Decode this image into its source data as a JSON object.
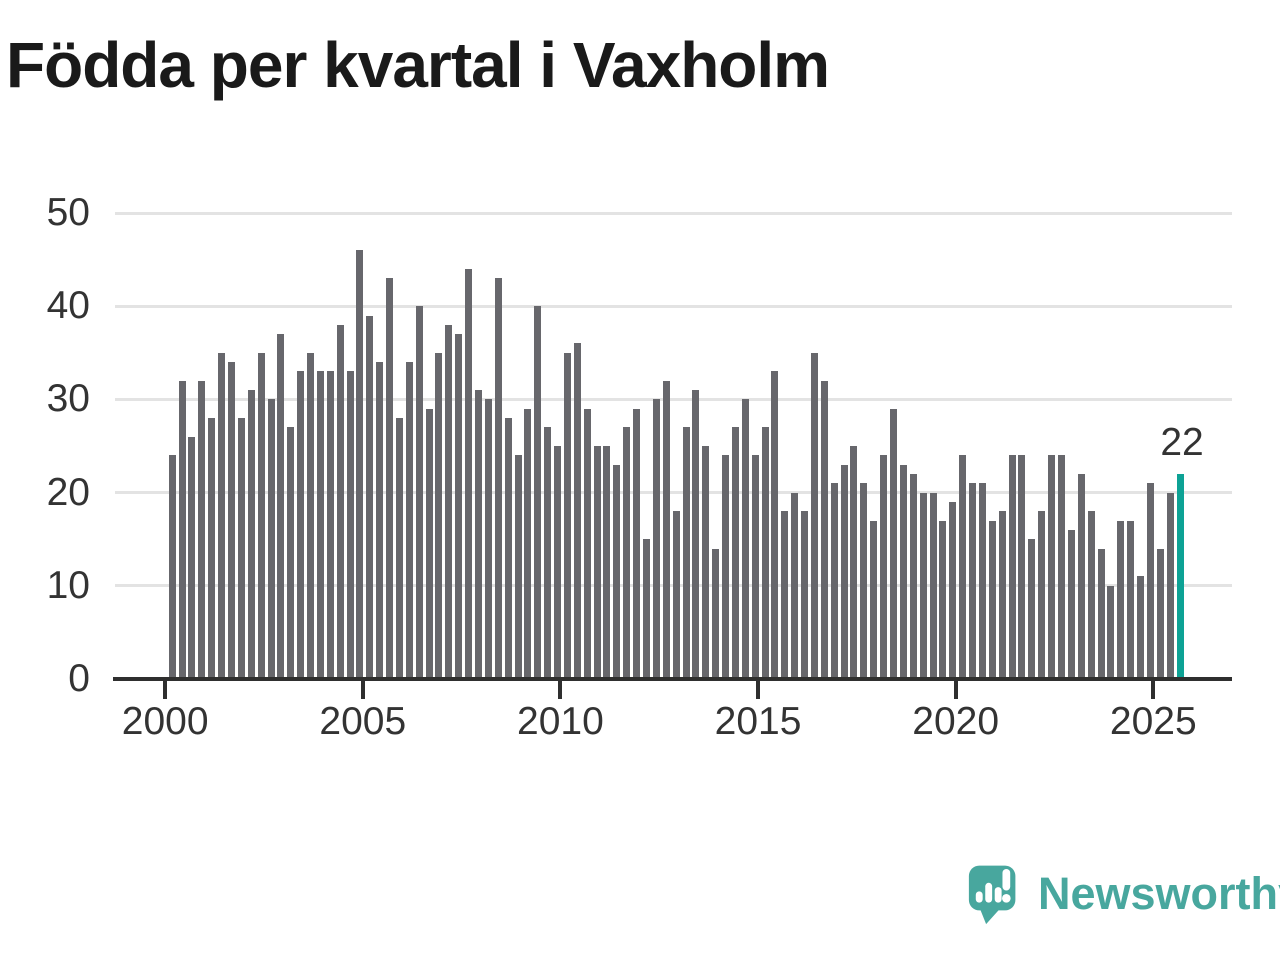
{
  "title": "Födda per kvartal i Vaxholm",
  "logo": {
    "text": "Newsworthy",
    "icon": "speech-bubble-bar-chart-icon"
  },
  "colors": {
    "bar": "#67676c",
    "highlight": "#0da295",
    "grid": "#e3e3e3",
    "axis": "#2f2f2f",
    "text": "#333333",
    "title": "#1a1a1a",
    "logo": "#48a79e"
  },
  "chart_data": {
    "type": "bar",
    "title": "Födda per kvartal i Vaxholm",
    "xlabel": "",
    "ylabel": "",
    "ylim": [
      0,
      50
    ],
    "yticks": [
      0,
      10,
      20,
      30,
      40,
      50
    ],
    "xtick_labels": [
      "2000",
      "2005",
      "2010",
      "2015",
      "2020",
      "2025"
    ],
    "grid": true,
    "legend_position": "none",
    "categories": [
      "2000-Q1",
      "2000-Q2",
      "2000-Q3",
      "2000-Q4",
      "2001-Q1",
      "2001-Q2",
      "2001-Q3",
      "2001-Q4",
      "2002-Q1",
      "2002-Q2",
      "2002-Q3",
      "2002-Q4",
      "2003-Q1",
      "2003-Q2",
      "2003-Q3",
      "2003-Q4",
      "2004-Q1",
      "2004-Q2",
      "2004-Q3",
      "2004-Q4",
      "2005-Q1",
      "2005-Q2",
      "2005-Q3",
      "2005-Q4",
      "2006-Q1",
      "2006-Q2",
      "2006-Q3",
      "2006-Q4",
      "2007-Q1",
      "2007-Q2",
      "2007-Q3",
      "2007-Q4",
      "2008-Q1",
      "2008-Q2",
      "2008-Q3",
      "2008-Q4",
      "2009-Q1",
      "2009-Q2",
      "2009-Q3",
      "2009-Q4",
      "2010-Q1",
      "2010-Q2",
      "2010-Q3",
      "2010-Q4",
      "2011-Q1",
      "2011-Q2",
      "2011-Q3",
      "2011-Q4",
      "2012-Q1",
      "2012-Q2",
      "2012-Q3",
      "2012-Q4",
      "2013-Q1",
      "2013-Q2",
      "2013-Q3",
      "2013-Q4",
      "2014-Q1",
      "2014-Q2",
      "2014-Q3",
      "2014-Q4",
      "2015-Q1",
      "2015-Q2",
      "2015-Q3",
      "2015-Q4",
      "2016-Q1",
      "2016-Q2",
      "2016-Q3",
      "2016-Q4",
      "2017-Q1",
      "2017-Q2",
      "2017-Q3",
      "2017-Q4",
      "2018-Q1",
      "2018-Q2",
      "2018-Q3",
      "2018-Q4",
      "2019-Q1",
      "2019-Q2",
      "2019-Q3",
      "2019-Q4",
      "2020-Q1",
      "2020-Q2",
      "2020-Q3",
      "2020-Q4",
      "2021-Q1",
      "2021-Q2",
      "2021-Q3",
      "2021-Q4",
      "2022-Q1",
      "2022-Q2",
      "2022-Q3",
      "2022-Q4",
      "2023-Q1",
      "2023-Q2",
      "2023-Q3",
      "2023-Q4",
      "2024-Q1",
      "2024-Q2",
      "2024-Q3",
      "2024-Q4",
      "2025-Q1",
      "2025-Q2",
      "2025-Q3"
    ],
    "values": [
      24,
      32,
      26,
      32,
      28,
      35,
      34,
      28,
      31,
      35,
      30,
      37,
      27,
      33,
      35,
      33,
      33,
      38,
      33,
      46,
      39,
      34,
      43,
      28,
      34,
      40,
      29,
      35,
      38,
      37,
      44,
      31,
      30,
      43,
      28,
      24,
      29,
      40,
      27,
      25,
      35,
      36,
      29,
      25,
      25,
      23,
      27,
      29,
      15,
      30,
      32,
      18,
      27,
      31,
      25,
      14,
      24,
      27,
      30,
      24,
      27,
      33,
      18,
      20,
      18,
      35,
      32,
      21,
      23,
      25,
      21,
      17,
      24,
      29,
      23,
      22,
      20,
      20,
      17,
      19,
      24,
      21,
      21,
      17,
      18,
      24,
      24,
      15,
      18,
      24,
      24,
      16,
      22,
      18,
      14,
      10,
      17,
      17,
      11,
      21,
      14,
      20,
      22
    ],
    "highlight_last": {
      "index": 102,
      "category": "2025-Q3",
      "value": 22,
      "label": "22"
    }
  }
}
